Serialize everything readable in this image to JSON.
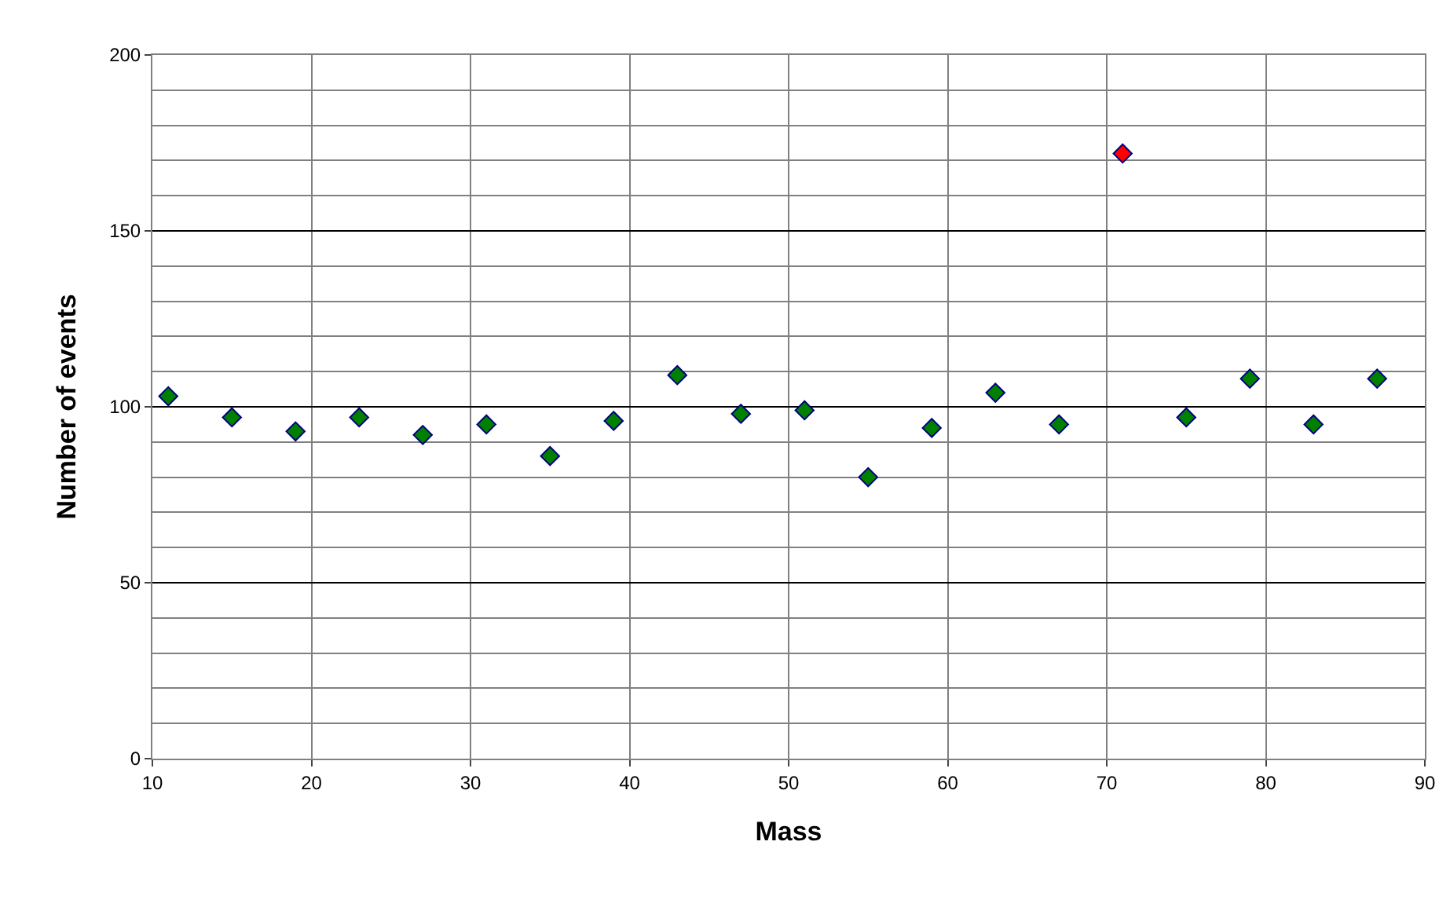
{
  "chart_data": {
    "type": "scatter",
    "xlabel": "Mass",
    "ylabel": "Number of events",
    "x": [
      11,
      15,
      19,
      23,
      27,
      31,
      35,
      39,
      43,
      47,
      51,
      55,
      59,
      63,
      67,
      71,
      75,
      79,
      83,
      87
    ],
    "values": [
      103,
      97,
      93,
      97,
      92,
      95,
      86,
      96,
      109,
      98,
      99,
      80,
      94,
      104,
      95,
      172,
      97,
      108,
      95,
      108
    ],
    "colors": [
      "#008000",
      "#008000",
      "#008000",
      "#008000",
      "#008000",
      "#008000",
      "#008000",
      "#008000",
      "#008000",
      "#008000",
      "#008000",
      "#008000",
      "#008000",
      "#008000",
      "#008000",
      "#ff0000",
      "#008000",
      "#008000",
      "#008000",
      "#008000"
    ],
    "xlim": [
      10,
      90
    ],
    "xticks": [
      10,
      20,
      30,
      40,
      50,
      60,
      70,
      80,
      90
    ],
    "ylim": [
      0,
      200
    ],
    "yticks": [
      0,
      50,
      100,
      150,
      200
    ],
    "grid": true,
    "marker": "diamond"
  }
}
